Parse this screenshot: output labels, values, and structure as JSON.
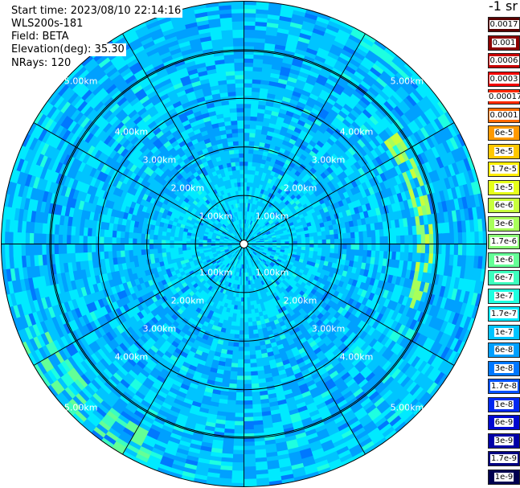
{
  "header": {
    "start_time": "Start time: 2023/08/10 22:14:16",
    "instrument": "WLS200s-181",
    "field": "Field: BETA",
    "elevation": "Elevation(deg): 35.30",
    "nrays": "NRays: 120"
  },
  "colorbar": {
    "title": "-1 sr",
    "levels": [
      {
        "label": "0.0017",
        "color": "#5a0000"
      },
      {
        "label": "0.001",
        "color": "#8c0000"
      },
      {
        "label": "0.0006",
        "color": "#c80000"
      },
      {
        "label": "0.0003",
        "color": "#f20000"
      },
      {
        "label": "0.00017",
        "color": "#ff2a00"
      },
      {
        "label": "0.0001",
        "color": "#ff6a00"
      },
      {
        "label": "6e-5",
        "color": "#ff9a00"
      },
      {
        "label": "3e-5",
        "color": "#ffc800"
      },
      {
        "label": "1.7e-5",
        "color": "#ffee00"
      },
      {
        "label": "1e-5",
        "color": "#e6ff1a"
      },
      {
        "label": "6e-6",
        "color": "#c8ff3c"
      },
      {
        "label": "3e-6",
        "color": "#a8ff5a"
      },
      {
        "label": "1.7e-6",
        "color": "#8cff78"
      },
      {
        "label": "1e-6",
        "color": "#64ff96"
      },
      {
        "label": "6e-7",
        "color": "#3cffbe"
      },
      {
        "label": "3e-7",
        "color": "#1effe0"
      },
      {
        "label": "1.7e-7",
        "color": "#00eaff"
      },
      {
        "label": "1e-7",
        "color": "#00c4ff"
      },
      {
        "label": "6e-8",
        "color": "#00a0ff"
      },
      {
        "label": "3e-8",
        "color": "#0078ff"
      },
      {
        "label": "1.7e-8",
        "color": "#0050ff"
      },
      {
        "label": "1e-8",
        "color": "#0028f0"
      },
      {
        "label": "6e-9",
        "color": "#0008d0"
      },
      {
        "label": "3e-9",
        "color": "#0000a8"
      },
      {
        "label": "1.7e-9",
        "color": "#000080"
      },
      {
        "label": "1e-9",
        "color": "#000050"
      }
    ]
  },
  "chart_data": {
    "type": "heatmap",
    "projection": "polar-ppi",
    "rays": 120,
    "range_max_km": 5.0,
    "range_ring_labels": [
      {
        "label": "1.00km",
        "range_km": 1.0
      },
      {
        "label": "2.00km",
        "range_km": 2.0
      },
      {
        "label": "3.00km",
        "range_km": 3.0
      },
      {
        "label": "4.00km",
        "range_km": 4.0
      },
      {
        "label": "5.00km",
        "range_km": 5.0
      }
    ],
    "label_azimuths_deg": [
      45,
      135,
      225,
      315
    ],
    "spoke_interval_deg": 30,
    "dominant_value": "1e-7",
    "colors": {
      "background_field": "#0078ff",
      "near_field": "#1effe0",
      "edge_strip": "#c8ff3c",
      "grid": "#000000"
    }
  }
}
